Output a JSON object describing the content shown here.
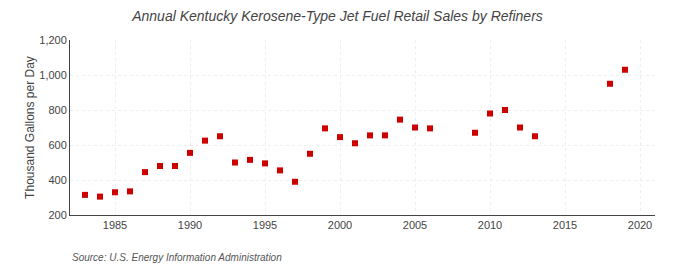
{
  "chart_data": {
    "type": "scatter",
    "title": "Annual Kentucky Kerosene-Type Jet Fuel Retail Sales by Refiners",
    "ylabel": "Thousand Gallons per Day",
    "source": "Source: U.S. Energy Information Administration",
    "x": [
      1983,
      1984,
      1985,
      1986,
      1987,
      1988,
      1989,
      1990,
      1991,
      1992,
      1993,
      1994,
      1995,
      1996,
      1997,
      1998,
      1999,
      2000,
      2001,
      2002,
      2003,
      2004,
      2005,
      2006,
      2009,
      2010,
      2011,
      2012,
      2013,
      2018,
      2019
    ],
    "values": [
      315,
      305,
      330,
      335,
      445,
      480,
      480,
      555,
      625,
      650,
      500,
      515,
      495,
      455,
      390,
      550,
      695,
      645,
      610,
      655,
      655,
      745,
      700,
      695,
      670,
      780,
      800,
      700,
      650,
      950,
      1030
    ],
    "color": "#cc0000",
    "marker": "square",
    "xlim": [
      1982,
      2021
    ],
    "xticks": [
      1985,
      1990,
      1995,
      2000,
      2005,
      2010,
      2015,
      2020
    ],
    "ylim": [
      200,
      1200
    ],
    "yticks": [
      200,
      400,
      600,
      800,
      {
        "value": 1000,
        "label": "1,000"
      },
      {
        "value": 1200,
        "label": "1,200"
      }
    ],
    "grid": true
  }
}
